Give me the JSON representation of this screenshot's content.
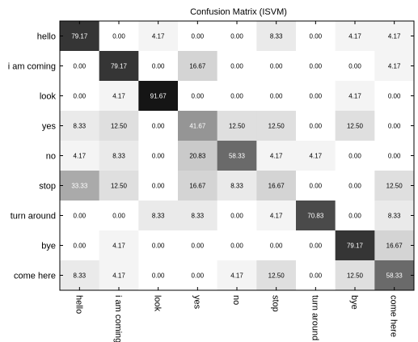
{
  "chart_data": {
    "type": "heatmap",
    "title": "Confusion Matrix (ISVM)",
    "row_labels": [
      "hello",
      "i am coming",
      "look",
      "yes",
      "no",
      "stop",
      "turn around",
      "bye",
      "come here"
    ],
    "col_labels": [
      "hello",
      "i am coming",
      "look",
      "yes",
      "no",
      "stop",
      "turn around",
      "bye",
      "come here"
    ],
    "values": [
      [
        79.17,
        0.0,
        4.17,
        0.0,
        0.0,
        8.33,
        0.0,
        4.17,
        4.17
      ],
      [
        0.0,
        79.17,
        0.0,
        16.67,
        0.0,
        0.0,
        0.0,
        0.0,
        4.17
      ],
      [
        0.0,
        4.17,
        91.67,
        0.0,
        0.0,
        0.0,
        0.0,
        4.17,
        0.0
      ],
      [
        8.33,
        12.5,
        0.0,
        41.67,
        12.5,
        12.5,
        0.0,
        12.5,
        0.0
      ],
      [
        4.17,
        8.33,
        0.0,
        20.83,
        58.33,
        4.17,
        4.17,
        0.0,
        0.0
      ],
      [
        33.33,
        12.5,
        0.0,
        16.67,
        8.33,
        16.67,
        0.0,
        0.0,
        12.5
      ],
      [
        0.0,
        0.0,
        8.33,
        8.33,
        0.0,
        4.17,
        70.83,
        0.0,
        8.33
      ],
      [
        0.0,
        4.17,
        0.0,
        0.0,
        0.0,
        0.0,
        0.0,
        79.17,
        16.67
      ],
      [
        8.33,
        4.17,
        0.0,
        0.0,
        4.17,
        12.5,
        0.0,
        12.5,
        58.33
      ]
    ],
    "display_values": [
      [
        "79.17",
        "0.00",
        "4.17",
        "0.00",
        "0.00",
        "8.33",
        "0.00",
        "4.17",
        "4.17"
      ],
      [
        "0.00",
        "79.17",
        "0.00",
        "16.67",
        "0.00",
        "0.00",
        "0.00",
        "0.00",
        "4.17"
      ],
      [
        "0.00",
        "4.17",
        "91.67",
        "0.00",
        "0.00",
        "0.00",
        "0.00",
        "4.17",
        "0.00"
      ],
      [
        "8.33",
        "12.50",
        "0.00",
        "41.67",
        "12.50",
        "12.50",
        "0.00",
        "12.50",
        "0.00"
      ],
      [
        "4.17",
        "8.33",
        "0.00",
        "20.83",
        "58.33",
        "4.17",
        "4.17",
        "0.00",
        "0.00"
      ],
      [
        "33.33",
        "12.50",
        "0.00",
        "16.67",
        "8.33",
        "16.67",
        "0.00",
        "0.00",
        "12.50"
      ],
      [
        "0.00",
        "0.00",
        "8.33",
        "8.33",
        "0.00",
        "4.17",
        "70.83",
        "0.00",
        "8.33"
      ],
      [
        "0.00",
        "4.17",
        "0.00",
        "0.00",
        "0.00",
        "0.00",
        "0.00",
        "79.17",
        "16.67"
      ],
      [
        "8.33",
        "4.17",
        "0.00",
        "0.00",
        "4.17",
        "12.50",
        "0.00",
        "12.50",
        "58.33"
      ]
    ],
    "value_range": [
      0,
      100
    ],
    "colormap": "white-to-black",
    "grid": false
  }
}
